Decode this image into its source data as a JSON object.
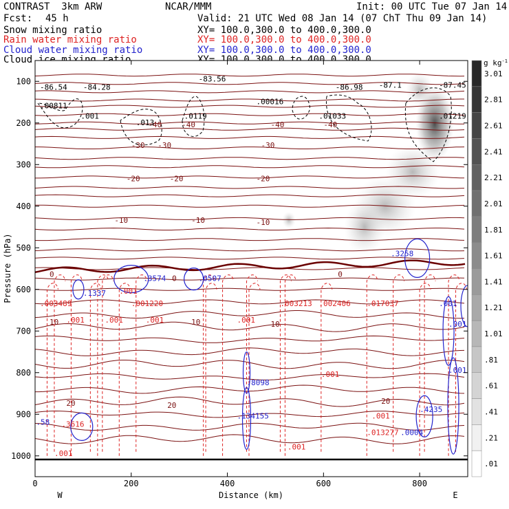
{
  "header": {
    "model": "CONTRAST  3km ARW",
    "org": "NCAR/MMM",
    "init": "Init: 00 UTC Tue 07 Jan 14",
    "fcst_label": "Fcst:",
    "fcst_value": "45 h",
    "valid": "Valid: 21 UTC Wed 08 Jan 14 (07 ChT Thu 09 Jan 14)",
    "fields": [
      {
        "name": "Snow mixing ratio",
        "xy": "XY= 100.0,300.0 to 400.0,300.0",
        "color": "#000000"
      },
      {
        "name": "Rain water mixing ratio",
        "xy": "XY= 100.0,300.0 to 400.0,300.0",
        "color": "#dd2222"
      },
      {
        "name": "Cloud water mixing ratio",
        "xy": "XY= 100.0,300.0 to 400.0,300.0",
        "color": "#2222cc"
      },
      {
        "name": "Cloud ice mixing ratio",
        "xy": "XY= 100.0,300.0 to 400.0,300.0",
        "color": "#000000"
      }
    ]
  },
  "chart_data": {
    "type": "heatmap",
    "title": "Vertical cross section",
    "xlabel": "Distance (km)",
    "ylabel": "Pressure (hPa)",
    "xlim": [
      0,
      900
    ],
    "ylim": [
      1050,
      50
    ],
    "x_ticks": [
      0,
      200,
      400,
      600,
      800
    ],
    "y_ticks": [
      100,
      200,
      300,
      400,
      500,
      600,
      700,
      800,
      900,
      1000
    ],
    "x_end_labels": {
      "left": "W",
      "right": "E"
    },
    "colorbar": {
      "unit": "g kg",
      "unit_exp": "-1",
      "levels": [
        "3.01",
        "2.81",
        "2.61",
        "2.41",
        "2.21",
        "2.01",
        "1.81",
        "1.61",
        "1.41",
        "1.21",
        "1.01",
        ".81",
        ".61",
        ".41",
        ".21",
        ".01"
      ]
    },
    "temperature_isotherm_labels": [
      {
        "value": "-40",
        "x": 235,
        "p": 210
      },
      {
        "value": "-40",
        "x": 305,
        "p": 210
      },
      {
        "value": "-40",
        "x": 490,
        "p": 210
      },
      {
        "value": "-40",
        "x": 600,
        "p": 210
      },
      {
        "value": "-30",
        "x": 200,
        "p": 260
      },
      {
        "value": "-30",
        "x": 255,
        "p": 260
      },
      {
        "value": "-30",
        "x": 470,
        "p": 260
      },
      {
        "value": "-20",
        "x": 190,
        "p": 340
      },
      {
        "value": "-20",
        "x": 280,
        "p": 340
      },
      {
        "value": "-20",
        "x": 460,
        "p": 340
      },
      {
        "value": "-10",
        "x": 165,
        "p": 440
      },
      {
        "value": "-10",
        "x": 325,
        "p": 440
      },
      {
        "value": "-10",
        "x": 460,
        "p": 445
      },
      {
        "value": "0",
        "x": 30,
        "p": 570
      },
      {
        "value": "0",
        "x": 285,
        "p": 580
      },
      {
        "value": "0",
        "x": 630,
        "p": 570
      },
      {
        "value": "10",
        "x": 30,
        "p": 685
      },
      {
        "value": "10",
        "x": 325,
        "p": 685
      },
      {
        "value": "10",
        "x": 490,
        "p": 690
      },
      {
        "value": "20",
        "x": 65,
        "p": 880
      },
      {
        "value": "20",
        "x": 275,
        "p": 885
      },
      {
        "value": "20",
        "x": 720,
        "p": 875
      }
    ],
    "temp_contour_pressures": [
      85,
      105,
      125,
      145,
      160,
      180,
      200,
      215,
      235,
      260,
      285,
      305,
      330,
      355,
      375,
      400,
      430,
      455,
      480,
      505,
      525,
      550,
      575,
      600,
      630,
      660,
      690,
      720,
      750,
      780,
      810,
      840,
      870,
      900,
      930,
      960
    ],
    "freezing_level_hpa": 555,
    "snow_max_labels": [
      {
        "value": "-86.54",
        "x": 10,
        "p": 120
      },
      {
        "value": "-84.28",
        "x": 100,
        "p": 120
      },
      {
        "value": "-83.56",
        "x": 340,
        "p": 100
      },
      {
        "value": "-86.98",
        "x": 625,
        "p": 120
      },
      {
        "value": "-87.1",
        "x": 715,
        "p": 115
      },
      {
        "value": "-87.45",
        "x": 840,
        "p": 115
      },
      {
        "value": ".00811",
        "x": 10,
        "p": 165
      },
      {
        "value": ".001",
        "x": 95,
        "p": 190
      },
      {
        "value": ".013",
        "x": 210,
        "p": 205
      },
      {
        "value": ".0119",
        "x": 310,
        "p": 190
      },
      {
        "value": ".00016",
        "x": 460,
        "p": 155
      },
      {
        "value": ".01033",
        "x": 590,
        "p": 190
      },
      {
        "value": ".01219",
        "x": 840,
        "p": 190
      }
    ],
    "rain_labels": [
      {
        "value": ".003489",
        "x": 10,
        "p": 640
      },
      {
        "value": ".001",
        "x": 65,
        "p": 680
      },
      {
        "value": ".001",
        "x": 145,
        "p": 680
      },
      {
        "value": ".001",
        "x": 175,
        "p": 610
      },
      {
        "value": ".001220",
        "x": 200,
        "p": 640
      },
      {
        "value": ".001",
        "x": 230,
        "p": 680
      },
      {
        "value": ".001",
        "x": 420,
        "p": 680
      },
      {
        "value": ".003213",
        "x": 510,
        "p": 640
      },
      {
        "value": ".002406",
        "x": 590,
        "p": 640
      },
      {
        "value": ".017037",
        "x": 690,
        "p": 640
      },
      {
        "value": ".001",
        "x": 595,
        "p": 810
      },
      {
        "value": ".001",
        "x": 700,
        "p": 910
      },
      {
        "value": ".013277",
        "x": 690,
        "p": 950
      },
      {
        "value": ".001",
        "x": 525,
        "p": 985
      },
      {
        "value": ".001",
        "x": 40,
        "p": 1000
      },
      {
        "value": ".3616",
        "x": 55,
        "p": 930
      }
    ],
    "cloud_water_labels": [
      {
        "value": ".3574",
        "x": 225,
        "p": 580
      },
      {
        "value": ".0507",
        "x": 340,
        "p": 580
      },
      {
        "value": ".1337",
        "x": 100,
        "p": 615
      },
      {
        "value": ".3258",
        "x": 740,
        "p": 520
      },
      {
        "value": ".8098",
        "x": 440,
        "p": 830
      },
      {
        "value": ".134155",
        "x": 420,
        "p": 910
      },
      {
        "value": ".4235",
        "x": 800,
        "p": 895
      },
      {
        "value": ".0004",
        "x": 760,
        "p": 950
      },
      {
        "value": ".58",
        "x": 2,
        "p": 925
      },
      {
        "value": ".001",
        "x": 860,
        "p": 800
      },
      {
        "value": ".001",
        "x": 860,
        "p": 690
      },
      {
        "value": ".001",
        "x": 840,
        "p": 640
      }
    ]
  }
}
